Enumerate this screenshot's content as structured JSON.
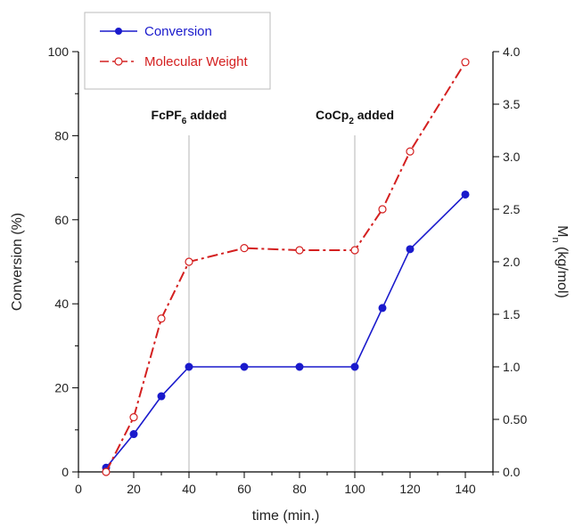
{
  "chart_data": {
    "type": "line",
    "xlabel": "time (min.)",
    "ylabel": "Conversion (%)",
    "y2label": {
      "main": "M",
      "sub": "n",
      "rest": " (kg/mol)"
    },
    "xlim": [
      0,
      150
    ],
    "ylim": [
      0,
      100
    ],
    "y2lim": [
      0,
      4
    ],
    "x_ticks": [
      "0",
      "20",
      "40",
      "60",
      "80",
      "100",
      "120",
      "140"
    ],
    "y_ticks": [
      "0",
      "20",
      "40",
      "60",
      "80",
      "100"
    ],
    "y2_ticks": [
      "0.0",
      "0.50",
      "1.0",
      "1.5",
      "2.0",
      "2.5",
      "3.0",
      "3.5",
      "4.0"
    ],
    "legend": {
      "position": "top-left",
      "entries": [
        "Conversion",
        "Molecular Weight"
      ]
    },
    "annotations": [
      {
        "x": 40,
        "main": "FcPF",
        "sub": "6",
        "rest": " added"
      },
      {
        "x": 100,
        "main": "CoCp",
        "sub": "2",
        "rest": " added"
      }
    ],
    "series": [
      {
        "name": "Conversion",
        "axis": "left",
        "color": "#1a1acc",
        "x": [
          10,
          20,
          30,
          40,
          60,
          80,
          100,
          110,
          120,
          140
        ],
        "values": [
          1,
          9,
          18,
          25,
          25,
          25,
          25,
          39,
          53,
          66
        ]
      },
      {
        "name": "Molecular Weight",
        "axis": "right",
        "color": "#d42020",
        "x": [
          10,
          20,
          30,
          40,
          60,
          80,
          100,
          110,
          120,
          140
        ],
        "values": [
          0.0,
          0.52,
          1.46,
          2.0,
          2.13,
          2.11,
          2.11,
          2.5,
          3.05,
          3.9
        ]
      }
    ]
  }
}
